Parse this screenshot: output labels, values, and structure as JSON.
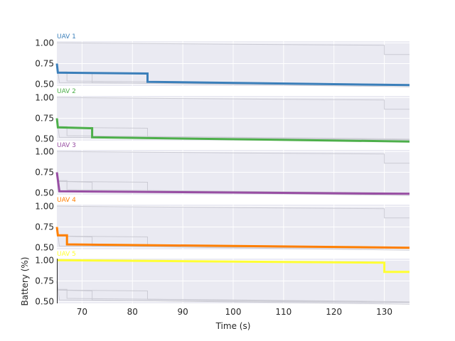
{
  "chart_data": {
    "type": "line",
    "title": "",
    "xlabel": "Time (s)",
    "ylabel": "Battery (%)",
    "xlim": [
      65,
      135
    ],
    "ylim": [
      0.48,
      1.02
    ],
    "xticks": [
      70,
      80,
      90,
      100,
      110,
      120,
      130
    ],
    "yticks": [
      0.5,
      0.75,
      1.0
    ],
    "grid": true,
    "background_color": "#eaeaf2",
    "background_line_color": "#c8c8d0",
    "panels": [
      {
        "name": "UAV 1",
        "color": "#3b7fba",
        "x": [
          65,
          65.2,
          83,
          83,
          135
        ],
        "y": [
          0.75,
          0.64,
          0.63,
          0.53,
          0.49
        ]
      },
      {
        "name": "UAV 2",
        "color": "#4daf4a",
        "x": [
          65,
          65.2,
          72,
          72,
          135
        ],
        "y": [
          0.75,
          0.64,
          0.63,
          0.52,
          0.47
        ]
      },
      {
        "name": "UAV 3",
        "color": "#984ea3",
        "x": [
          65,
          65.5,
          135
        ],
        "y": [
          0.75,
          0.52,
          0.49
        ]
      },
      {
        "name": "UAV 4",
        "color": "#ff7f00",
        "x": [
          65,
          65.2,
          67,
          67,
          135
        ],
        "y": [
          0.75,
          0.65,
          0.65,
          0.54,
          0.5
        ]
      },
      {
        "name": "UAV 5",
        "color": "#ffff33",
        "x": [
          65,
          130,
          130,
          135
        ],
        "y": [
          1.0,
          0.97,
          0.86,
          0.86
        ]
      }
    ]
  }
}
